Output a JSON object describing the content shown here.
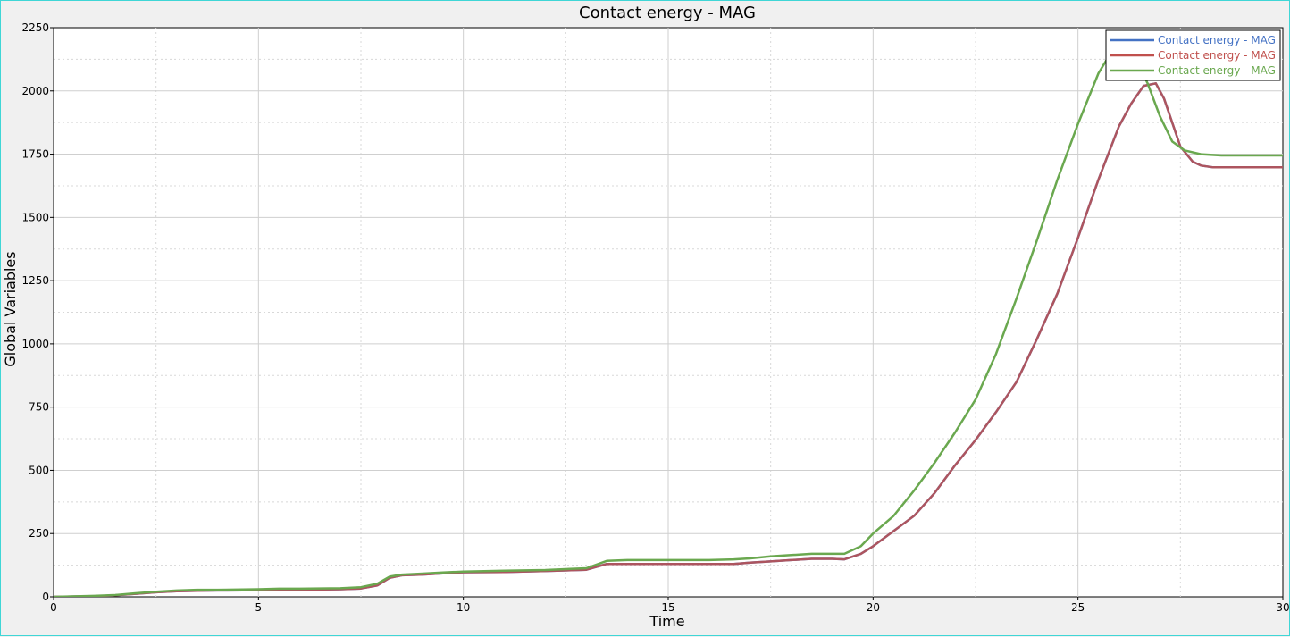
{
  "chart_data": {
    "type": "line",
    "title": "Contact energy - MAG",
    "xlabel": "Time",
    "ylabel": "Global Variables",
    "xlim": [
      0,
      30
    ],
    "ylim": [
      0,
      2250
    ],
    "xticks": [
      0,
      5,
      10,
      15,
      20,
      25,
      30
    ],
    "yticks": [
      0,
      250,
      500,
      750,
      1000,
      1250,
      1500,
      1750,
      2000,
      2250
    ],
    "xtick_labels": [
      "0",
      "5",
      "10",
      "15",
      "20",
      "25",
      "30"
    ],
    "ytick_labels": [
      "0",
      "250",
      "500",
      "750",
      "1000",
      "1250",
      "1500",
      "1750",
      "2000",
      "2250"
    ],
    "grid": true,
    "legend_position": "top-right",
    "series": [
      {
        "name": "Contact energy - MAG",
        "color": "#4472c4",
        "x": [
          0,
          1,
          1.5,
          2,
          2.5,
          3,
          3.5,
          4,
          5,
          5.5,
          6,
          7,
          7.5,
          7.9,
          8.2,
          8.5,
          9,
          9.5,
          10,
          11,
          12,
          13,
          13.5,
          14,
          15,
          16,
          16.6,
          17,
          17.5,
          18,
          18.5,
          19,
          19.3,
          19.7,
          20,
          20.5,
          21,
          21.5,
          22,
          22.5,
          23,
          23.5,
          24,
          24.5,
          25,
          25.5,
          26,
          26.3,
          26.6,
          26.9,
          27.1,
          27.5,
          27.8,
          28,
          28.3,
          29,
          30
        ],
        "y": [
          0,
          3,
          6,
          12,
          18,
          22,
          24,
          25,
          26,
          28,
          28,
          30,
          33,
          45,
          75,
          85,
          88,
          93,
          97,
          98,
          102,
          107,
          130,
          130,
          130,
          130,
          130,
          135,
          140,
          145,
          150,
          150,
          148,
          170,
          200,
          260,
          320,
          410,
          520,
          620,
          730,
          850,
          1020,
          1200,
          1420,
          1650,
          1860,
          1950,
          2020,
          2030,
          1970,
          1780,
          1720,
          1705,
          1698,
          1698,
          1698
        ]
      },
      {
        "name": "Contact energy - MAG",
        "color": "#c0504d",
        "x": [
          0,
          1,
          1.5,
          2,
          2.5,
          3,
          3.5,
          4,
          5,
          5.5,
          6,
          7,
          7.5,
          7.9,
          8.2,
          8.5,
          9,
          9.5,
          10,
          11,
          12,
          13,
          13.5,
          14,
          15,
          16,
          16.6,
          17,
          17.5,
          18,
          18.5,
          19,
          19.3,
          19.7,
          20,
          20.5,
          21,
          21.5,
          22,
          22.5,
          23,
          23.5,
          24,
          24.5,
          25,
          25.5,
          26,
          26.3,
          26.6,
          26.9,
          27.1,
          27.5,
          27.8,
          28,
          28.3,
          29,
          30
        ],
        "y": [
          0,
          3,
          6,
          12,
          18,
          22,
          24,
          25,
          26,
          28,
          28,
          30,
          33,
          45,
          75,
          85,
          88,
          93,
          97,
          98,
          102,
          107,
          130,
          130,
          130,
          130,
          130,
          135,
          140,
          145,
          150,
          150,
          148,
          170,
          200,
          260,
          320,
          410,
          520,
          620,
          730,
          850,
          1020,
          1200,
          1420,
          1650,
          1860,
          1950,
          2020,
          2030,
          1970,
          1780,
          1720,
          1705,
          1698,
          1698,
          1698
        ]
      },
      {
        "name": "Contact energy - MAG",
        "color": "#6aa84f",
        "x": [
          0,
          1,
          1.5,
          2,
          2.5,
          3,
          3.5,
          4,
          5,
          5.5,
          6,
          7,
          7.5,
          7.9,
          8.2,
          8.5,
          9,
          9.5,
          10,
          11,
          12,
          13,
          13.5,
          14,
          15,
          16,
          16.6,
          17,
          17.5,
          18,
          18.5,
          19,
          19.3,
          19.7,
          20,
          20.5,
          21,
          21.5,
          22,
          22.5,
          23,
          23.5,
          24,
          24.5,
          25,
          25.5,
          25.8,
          26.1,
          26.4,
          26.7,
          27,
          27.3,
          27.6,
          28,
          28.5,
          29,
          30
        ],
        "y": [
          0,
          4,
          7,
          14,
          20,
          25,
          28,
          28,
          30,
          32,
          32,
          34,
          38,
          52,
          80,
          88,
          92,
          96,
          100,
          103,
          106,
          113,
          142,
          145,
          145,
          145,
          148,
          152,
          160,
          165,
          170,
          170,
          170,
          200,
          250,
          320,
          420,
          530,
          650,
          780,
          960,
          1180,
          1410,
          1650,
          1870,
          2070,
          2150,
          2200,
          2130,
          2030,
          1900,
          1800,
          1765,
          1750,
          1745,
          1745,
          1745
        ]
      }
    ]
  }
}
